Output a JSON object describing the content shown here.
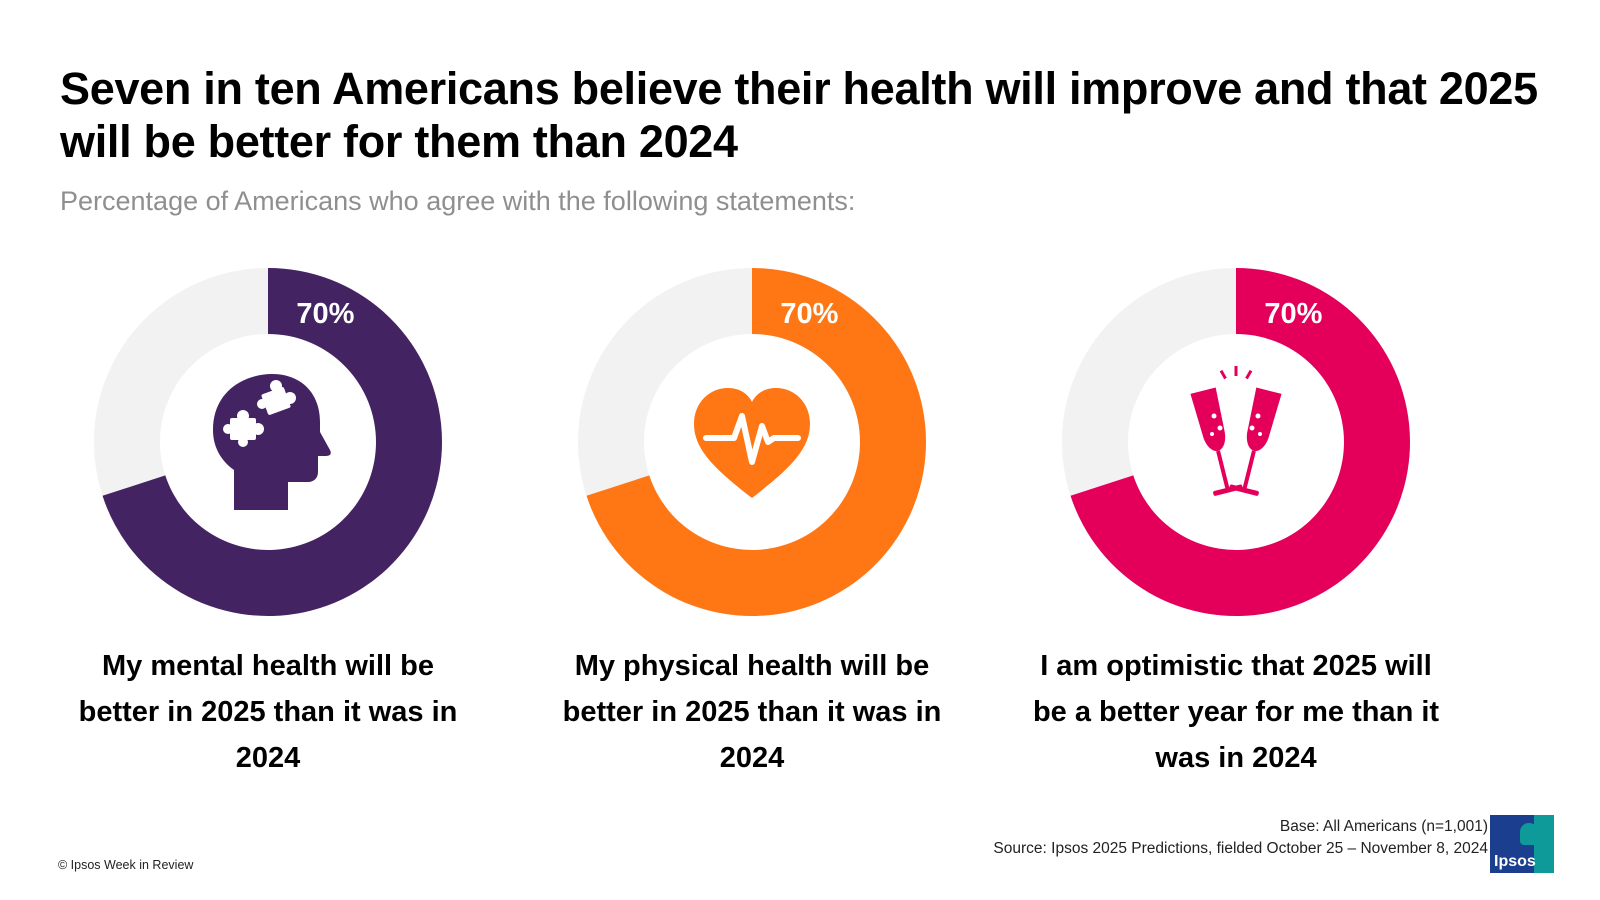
{
  "title": "Seven in ten Americans believe their health will improve and that 2025 will be better for them than 2024",
  "subtitle": "Percentage of Americans who agree with the following statements:",
  "chart_data": [
    {
      "type": "pie",
      "value": 70,
      "value_label": "70%",
      "category": "My mental health will be better in 2025 than it was in 2024",
      "color": "#442363",
      "remainder_color": "#f2f2f2",
      "icon": "brain-puzzle-head-icon"
    },
    {
      "type": "pie",
      "value": 70,
      "value_label": "70%",
      "category": "My physical health will be better in 2025 than it was in 2024",
      "color": "#ff7715",
      "remainder_color": "#f2f2f2",
      "icon": "heartbeat-icon"
    },
    {
      "type": "pie",
      "value": 70,
      "value_label": "70%",
      "category": "I am optimistic that 2025 will be a better year for me than it was in 2024",
      "color": "#e4005a",
      "remainder_color": "#f2f2f2",
      "icon": "champagne-toast-icon"
    }
  ],
  "footer": {
    "copyright": "© Ipsos Week in Review",
    "base": "Base: All Americans (n=1,001)",
    "source": "Source: Ipsos 2025 Predictions, fielded October 25 – November 8, 2024"
  },
  "logo": {
    "text": "Ipsos"
  }
}
